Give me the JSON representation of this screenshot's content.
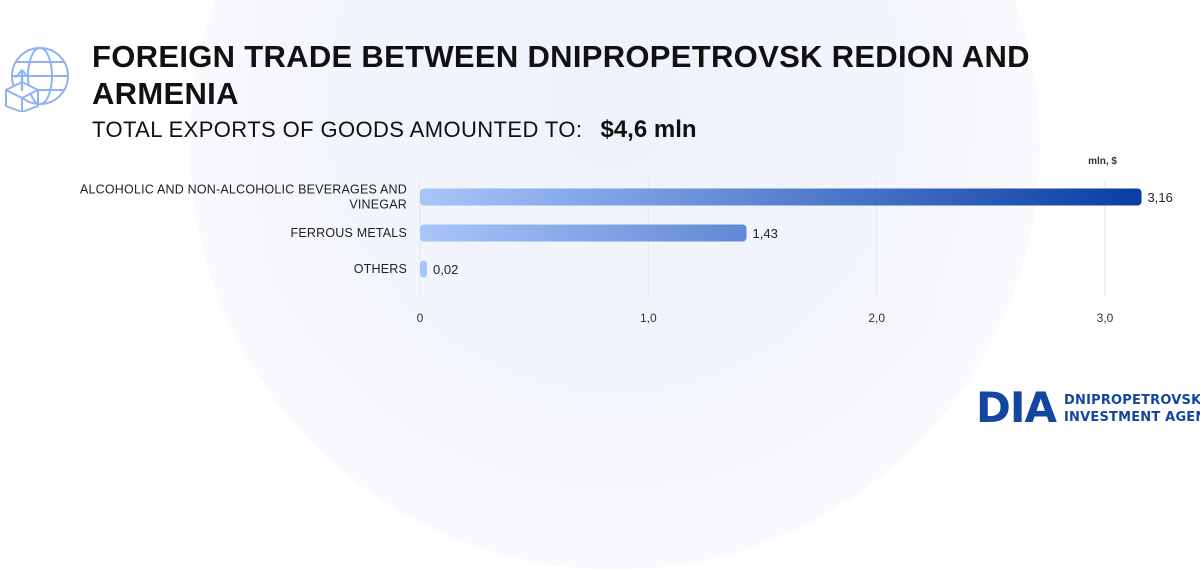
{
  "header": {
    "title": "FOREIGN TRADE BETWEEN DNIPROPETROVSK REDION AND ARMENIA",
    "subtitle_label": "TOTAL EXPORTS OF GOODS AMOUNTED TO:",
    "subtitle_value": "$4,6 mln",
    "icon": "globe-export-box-icon"
  },
  "chart_data": {
    "type": "bar",
    "orientation": "horizontal",
    "unit_label": "mln, $",
    "categories": [
      [
        "ALCOHOLIC AND NON-ALCOHOLIC BEVERAGES AND",
        "VINEGAR"
      ],
      [
        "FERROUS METALS"
      ],
      [
        "OTHERS"
      ]
    ],
    "values": [
      3.16,
      1.43,
      0.02
    ],
    "value_labels": [
      "3,16",
      "1,43",
      "0,02"
    ],
    "xlim": [
      0,
      3.0
    ],
    "xticks": [
      0,
      1.0,
      2.0,
      3.0
    ],
    "xtick_labels": [
      "0",
      "1,0",
      "2,0",
      "3,0"
    ],
    "grid": true,
    "bar_color_start": "#a9c6fb",
    "bar_color_end": "#0b3fa6"
  },
  "logo": {
    "mark": "DIA",
    "line1": "DNIPROPETROVSK",
    "line2": "INVESTMENT AGENCY",
    "color": "#1446a0"
  }
}
